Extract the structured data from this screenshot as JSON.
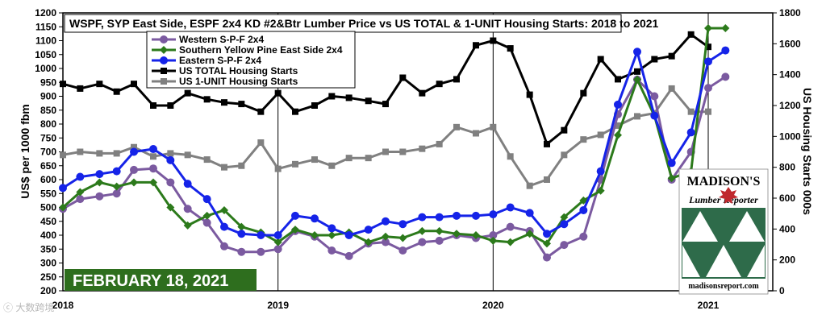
{
  "date_banner": "FEBRUARY 18, 2021",
  "watermark": "ⓒ 大数跨境",
  "logo": {
    "title": "MADISON'S",
    "subtitle": "Lumber Reporter",
    "website": "madisonsreport.com"
  },
  "colors": {
    "western_spf": "#7b5aa0",
    "syp": "#2c7a1b",
    "eastern_spf": "#1523e8",
    "us_total": "#000000",
    "us_1unit": "#808080",
    "gridline": "#000000",
    "banner": "#2e6e1e"
  },
  "chart_data": {
    "type": "line",
    "title": "WSPF, SYP East Side, ESPF 2x4 KD #2&Btr Lumber Price vs US TOTAL & 1-UNIT Housing Starts: 2018 to 2021",
    "ylabel_left": "US$ per 1000 fbm",
    "ylabel_right": "US Housing Starts 000s",
    "ylim_left": [
      200,
      1200
    ],
    "yticks_left": [
      "1200",
      "1150",
      "1100",
      "1050",
      "1000",
      "950",
      "900",
      "850",
      "800",
      "750",
      "700",
      "650",
      "600",
      "550",
      "500",
      "450",
      "400",
      "350",
      "300",
      "250",
      "200"
    ],
    "ylim_right": [
      0,
      1800
    ],
    "yticks_right": [
      "1800",
      "1600",
      "1400",
      "1200",
      "1000",
      "800",
      "600",
      "400",
      "200",
      "0"
    ],
    "xlim": [
      2018.0,
      2021.3
    ],
    "x_tick_labels": [
      {
        "x": 2018,
        "label": "2018"
      },
      {
        "x": 2019,
        "label": "2019"
      },
      {
        "x": 2020,
        "label": "2020"
      },
      {
        "x": 2021,
        "label": "2021"
      }
    ],
    "legend_position": "top-left",
    "series": [
      {
        "name": "Western S-P-F 2x4",
        "axis": "left",
        "color": "#7b5aa0",
        "marker": "circle",
        "x": [
          2018.0,
          2018.08,
          2018.17,
          2018.25,
          2018.33,
          2018.42,
          2018.5,
          2018.58,
          2018.67,
          2018.75,
          2018.83,
          2018.92,
          2019.0,
          2019.08,
          2019.17,
          2019.25,
          2019.33,
          2019.42,
          2019.5,
          2019.58,
          2019.67,
          2019.75,
          2019.83,
          2019.92,
          2020.0,
          2020.08,
          2020.17,
          2020.25,
          2020.33,
          2020.42,
          2020.5,
          2020.58,
          2020.67,
          2020.75,
          2020.83,
          2020.92,
          2021.0,
          2021.08
        ],
        "y": [
          495,
          530,
          540,
          550,
          635,
          640,
          590,
          495,
          445,
          360,
          340,
          340,
          350,
          415,
          395,
          345,
          325,
          370,
          375,
          345,
          375,
          380,
          400,
          390,
          400,
          430,
          415,
          320,
          365,
          395,
          600,
          835,
          960,
          900,
          600,
          700,
          930,
          970
        ]
      },
      {
        "name": "Southern Yellow Pine East Side 2x4",
        "axis": "left",
        "color": "#2c7a1b",
        "marker": "diamond",
        "x": [
          2018.0,
          2018.08,
          2018.17,
          2018.25,
          2018.33,
          2018.42,
          2018.5,
          2018.58,
          2018.67,
          2018.75,
          2018.83,
          2018.92,
          2019.0,
          2019.08,
          2019.17,
          2019.25,
          2019.33,
          2019.42,
          2019.5,
          2019.58,
          2019.67,
          2019.75,
          2019.83,
          2019.92,
          2020.0,
          2020.08,
          2020.17,
          2020.25,
          2020.33,
          2020.42,
          2020.5,
          2020.58,
          2020.67,
          2020.75,
          2020.83,
          2020.92,
          2021.0,
          2021.08
        ],
        "y": [
          500,
          555,
          590,
          575,
          590,
          590,
          500,
          435,
          470,
          490,
          430,
          410,
          375,
          420,
          400,
          400,
          410,
          375,
          395,
          390,
          415,
          415,
          405,
          400,
          380,
          375,
          405,
          370,
          465,
          525,
          560,
          760,
          960,
          830,
          605,
          630,
          1145,
          1145
        ]
      },
      {
        "name": "Eastern S-P-F 2x4",
        "axis": "left",
        "color": "#1523e8",
        "marker": "circle",
        "x": [
          2018.0,
          2018.08,
          2018.17,
          2018.25,
          2018.33,
          2018.42,
          2018.5,
          2018.58,
          2018.67,
          2018.75,
          2018.83,
          2018.92,
          2019.0,
          2019.08,
          2019.17,
          2019.25,
          2019.33,
          2019.42,
          2019.5,
          2019.58,
          2019.67,
          2019.75,
          2019.83,
          2019.92,
          2020.0,
          2020.08,
          2020.17,
          2020.25,
          2020.33,
          2020.42,
          2020.5,
          2020.58,
          2020.67,
          2020.75,
          2020.83,
          2020.92,
          2021.0,
          2021.08
        ],
        "y": [
          570,
          610,
          620,
          630,
          700,
          710,
          670,
          585,
          530,
          430,
          405,
          400,
          400,
          470,
          460,
          425,
          400,
          420,
          450,
          440,
          465,
          465,
          470,
          470,
          475,
          500,
          480,
          405,
          440,
          490,
          630,
          870,
          1060,
          830,
          660,
          770,
          1025,
          1065
        ]
      },
      {
        "name": "US TOTAL Housing Starts",
        "axis": "right",
        "color": "#000000",
        "marker": "square",
        "x": [
          2018.0,
          2018.08,
          2018.17,
          2018.25,
          2018.33,
          2018.42,
          2018.5,
          2018.58,
          2018.67,
          2018.75,
          2018.83,
          2018.92,
          2019.0,
          2019.08,
          2019.17,
          2019.25,
          2019.33,
          2019.42,
          2019.5,
          2019.58,
          2019.67,
          2019.75,
          2019.83,
          2019.92,
          2020.0,
          2020.08,
          2020.17,
          2020.25,
          2020.33,
          2020.42,
          2020.5,
          2020.58,
          2020.67,
          2020.75,
          2020.83,
          2020.92,
          2021.0
        ],
        "y": [
          1340,
          1310,
          1340,
          1290,
          1340,
          1200,
          1200,
          1280,
          1240,
          1220,
          1210,
          1160,
          1280,
          1160,
          1200,
          1260,
          1250,
          1230,
          1210,
          1380,
          1280,
          1340,
          1370,
          1590,
          1620,
          1570,
          1270,
          950,
          1040,
          1280,
          1500,
          1370,
          1420,
          1500,
          1520,
          1660,
          1580
        ]
      },
      {
        "name": "US 1-UNIT Housing Starts",
        "axis": "right",
        "color": "#808080",
        "marker": "square",
        "x": [
          2018.0,
          2018.08,
          2018.17,
          2018.25,
          2018.33,
          2018.42,
          2018.5,
          2018.58,
          2018.67,
          2018.75,
          2018.83,
          2018.92,
          2019.0,
          2019.08,
          2019.17,
          2019.25,
          2019.33,
          2019.42,
          2019.5,
          2019.58,
          2019.67,
          2019.75,
          2019.83,
          2019.92,
          2020.0,
          2020.08,
          2020.17,
          2020.25,
          2020.33,
          2020.42,
          2020.5,
          2020.58,
          2020.67,
          2020.75,
          2020.83,
          2020.92,
          2021.0
        ],
        "y": [
          880,
          900,
          890,
          890,
          930,
          870,
          890,
          880,
          850,
          800,
          810,
          960,
          790,
          820,
          850,
          810,
          860,
          860,
          900,
          900,
          920,
          950,
          1060,
          1020,
          1060,
          870,
          680,
          720,
          880,
          980,
          1010,
          1070,
          1130,
          1150,
          1310,
          1160,
          1160
        ]
      }
    ]
  }
}
